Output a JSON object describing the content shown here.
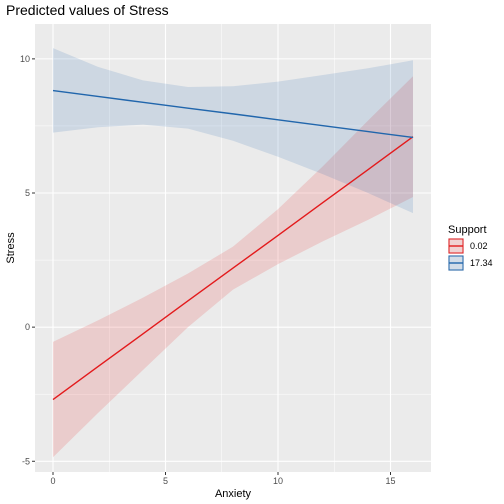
{
  "chart_data": {
    "type": "line",
    "title": "Predicted values of Stress",
    "xlabel": "Anxiety",
    "ylabel": "Stress",
    "xlim": [
      -0.8,
      16.8
    ],
    "ylim": [
      -5.4,
      11.3
    ],
    "x_ticks": [
      0,
      5,
      10,
      15
    ],
    "y_ticks": [
      -5,
      0,
      5,
      10
    ],
    "grid": true,
    "legend": {
      "title": "Support",
      "position": "right"
    },
    "series": [
      {
        "name": "0.02",
        "color": "#e31a1c",
        "x": [
          0,
          2,
          4,
          6,
          8,
          10,
          12,
          14,
          16
        ],
        "y": [
          -2.7,
          -1.47,
          -0.25,
          0.98,
          2.2,
          3.42,
          4.65,
          5.87,
          7.1
        ],
        "ci_low": [
          -4.85,
          -3.2,
          -1.6,
          0.0,
          1.4,
          2.35,
          3.2,
          4.0,
          4.85
        ],
        "ci_high": [
          -0.55,
          0.25,
          1.1,
          2.0,
          3.0,
          4.4,
          6.0,
          7.7,
          9.35
        ]
      },
      {
        "name": "17.34",
        "color": "#2166ac",
        "x": [
          0,
          2,
          4,
          6,
          8,
          10,
          12,
          14,
          16
        ],
        "y": [
          8.82,
          8.6,
          8.38,
          8.16,
          7.95,
          7.73,
          7.51,
          7.29,
          7.07
        ],
        "ci_low": [
          7.25,
          7.45,
          7.55,
          7.4,
          6.95,
          6.35,
          5.7,
          5.0,
          4.25
        ],
        "ci_high": [
          10.4,
          9.7,
          9.2,
          8.95,
          8.98,
          9.15,
          9.4,
          9.65,
          9.95
        ]
      }
    ]
  }
}
